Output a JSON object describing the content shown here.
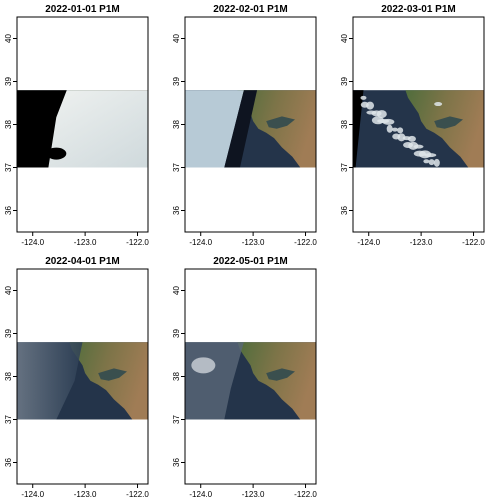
{
  "figure": {
    "x_ticks": [
      "-124.0",
      "-123.0",
      "-122.0"
    ],
    "y_ticks": [
      "36",
      "37",
      "38",
      "39",
      "40"
    ],
    "x_range": [
      -124.3,
      -121.8
    ],
    "y_range": [
      35.5,
      40.5
    ],
    "raster_extent": {
      "lon": [
        -124.3,
        -121.8
      ],
      "lat": [
        37.0,
        38.8
      ]
    },
    "panels": [
      {
        "title": "2022-01-01 P1M",
        "scene": "mostly-cloud-west-edge"
      },
      {
        "title": "2022-02-01 P1M",
        "scene": "haze-west-dark-ocean"
      },
      {
        "title": "2022-03-01 P1M",
        "scene": "scattered-clouds"
      },
      {
        "title": "2022-04-01 P1M",
        "scene": "clear-haze-ocean"
      },
      {
        "title": "2022-05-01 P1M",
        "scene": "clear-light-haze"
      }
    ],
    "colors": {
      "ocean": "#24344a",
      "land_green": "#4a6a3a",
      "land_brown": "#9a7a55",
      "cloud": "#e6ebee",
      "nodata_black": "#000000"
    }
  }
}
